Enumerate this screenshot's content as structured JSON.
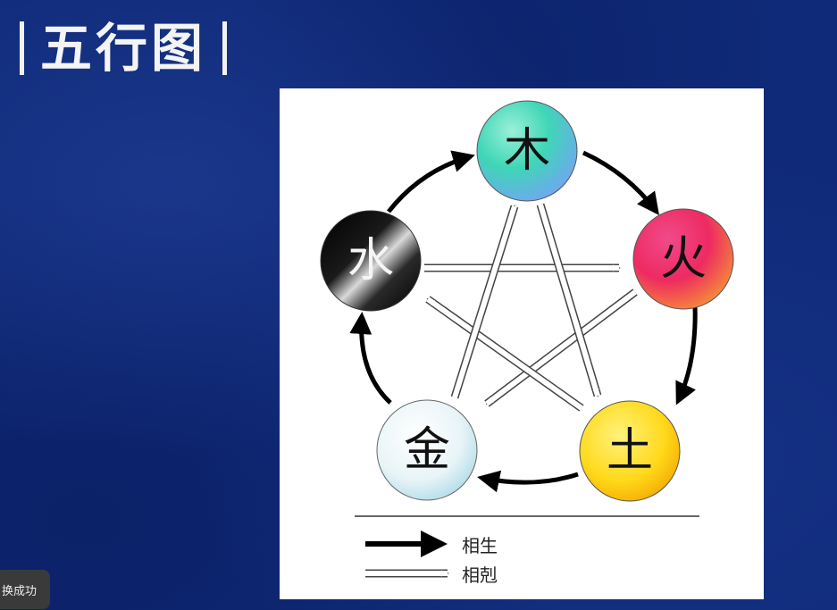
{
  "slide": {
    "title": "五行图",
    "background": "#0f2a78"
  },
  "diagram": {
    "elements": {
      "wood": {
        "label": "木",
        "colors": [
          "#3fd6b6",
          "#6fc2ee"
        ]
      },
      "fire": {
        "label": "火",
        "colors": [
          "#ee2a78",
          "#f0773a"
        ]
      },
      "earth": {
        "label": "土",
        "colors": [
          "#ffe94a",
          "#f2b600"
        ]
      },
      "metal": {
        "label": "金",
        "colors": [
          "#ffffff",
          "#b9e2ec"
        ]
      },
      "water": {
        "label": "水",
        "colors": [
          "#bfbfbf",
          "#000000"
        ]
      }
    },
    "legend": {
      "generate": "相生",
      "overcome": "相剋"
    }
  },
  "toast": {
    "text": "换成功"
  }
}
